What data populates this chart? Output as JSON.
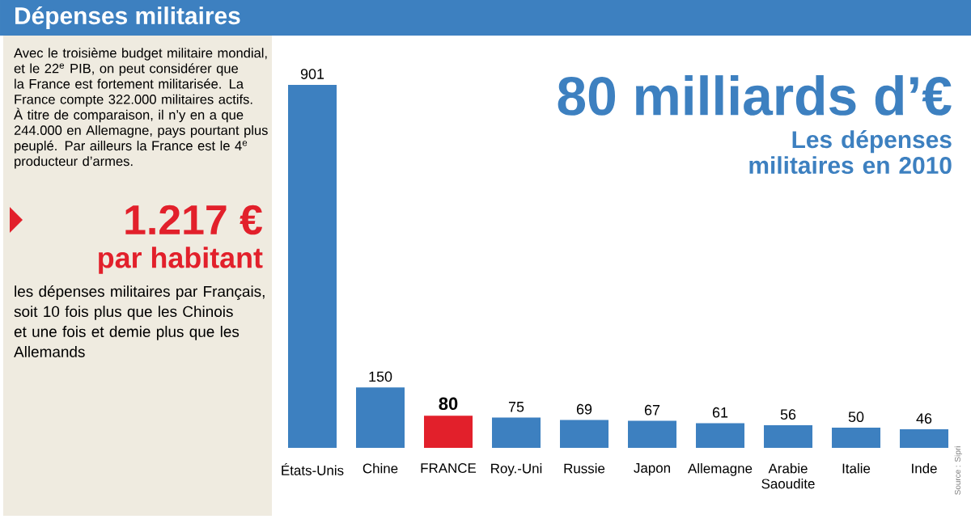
{
  "chart_data": {
    "type": "bar",
    "title": "Dépenses militaires",
    "categories": [
      "États-Unis",
      "Chine",
      "FRANCE",
      "Roy.-Uni",
      "Russie",
      "Japon",
      "Allemagne",
      "Arabie Saoudite",
      "Italie",
      "Inde"
    ],
    "values": [
      901,
      150,
      80,
      75,
      69,
      67,
      61,
      56,
      50,
      46
    ],
    "colors": [
      "#3d80c0",
      "#3d80c0",
      "#e2202b",
      "#3d80c0",
      "#3d80c0",
      "#3d80c0",
      "#3d80c0",
      "#3d80c0",
      "#3d80c0",
      "#3d80c0"
    ],
    "data_labels": true,
    "annotations": [
      "Avec le troisième budget militaire mondial, et le 22$^{e}$ PIB, on peut considérer que la France est fortement militarisée. La France compte 322.000 militaires actifs. À titre de comparaison, il n’y en a que 244.000 en Allemagne, pays pourtant plus peuplé. Par ailleurs la France est le 4$^{e}$ producteur d’armes.",
      "1.217 €",
      "par habitant",
      "les dépenses militaires par Français, soit 10 fois plus que les Chinois et une fois et demie plus que les Allemands",
      "80 milliards d’€",
      "Les dépenses militaires en 2010",
      "Source : Sipri"
    ]
  }
}
